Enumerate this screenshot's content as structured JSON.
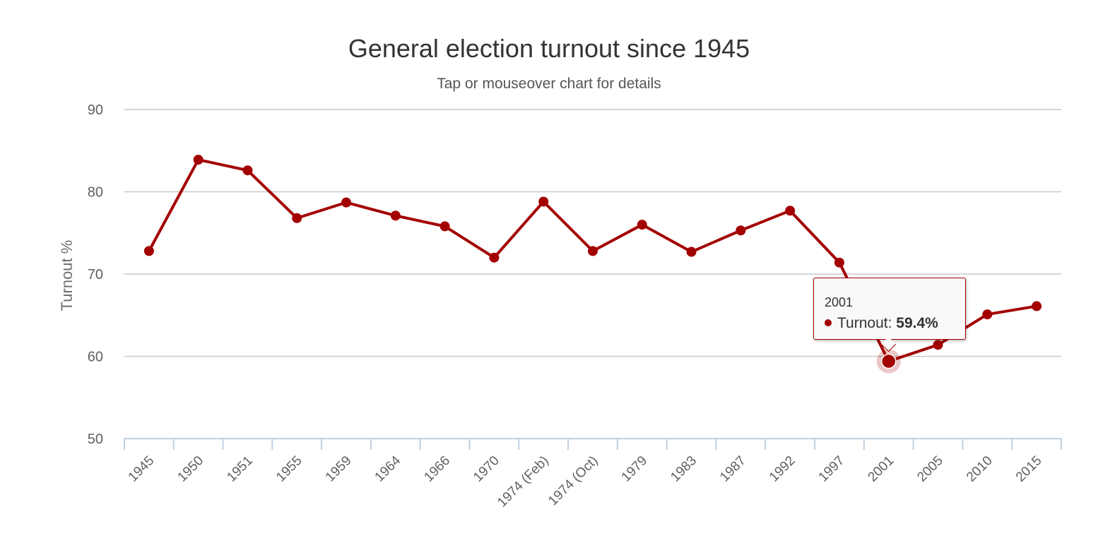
{
  "chart_data": {
    "type": "line",
    "title": "General election turnout since 1945",
    "subtitle": "Tap or mouseover chart for details",
    "ylabel": "Turnout %",
    "xlabel": "",
    "ylim": [
      50,
      90
    ],
    "yticks": [
      50,
      60,
      70,
      80,
      90
    ],
    "grid": true,
    "color": "#a30000",
    "categories": [
      "1945",
      "1950",
      "1951",
      "1955",
      "1959",
      "1964",
      "1966",
      "1970",
      "1974 (Feb)",
      "1974 (Oct)",
      "1979",
      "1983",
      "1987",
      "1992",
      "1997",
      "2001",
      "2005",
      "2010",
      "2015"
    ],
    "series": [
      {
        "values": [
          72.8,
          83.9,
          82.6,
          76.8,
          78.7,
          77.1,
          75.8,
          72.0,
          78.8,
          72.8,
          76.0,
          72.7,
          75.3,
          77.7,
          71.4,
          59.4,
          61.4,
          65.1,
          66.1
        ]
      }
    ]
  },
  "tooltip": {
    "category": "2001",
    "series_label": "Turnout:",
    "value": "59.4%",
    "highlight_index": 15
  }
}
